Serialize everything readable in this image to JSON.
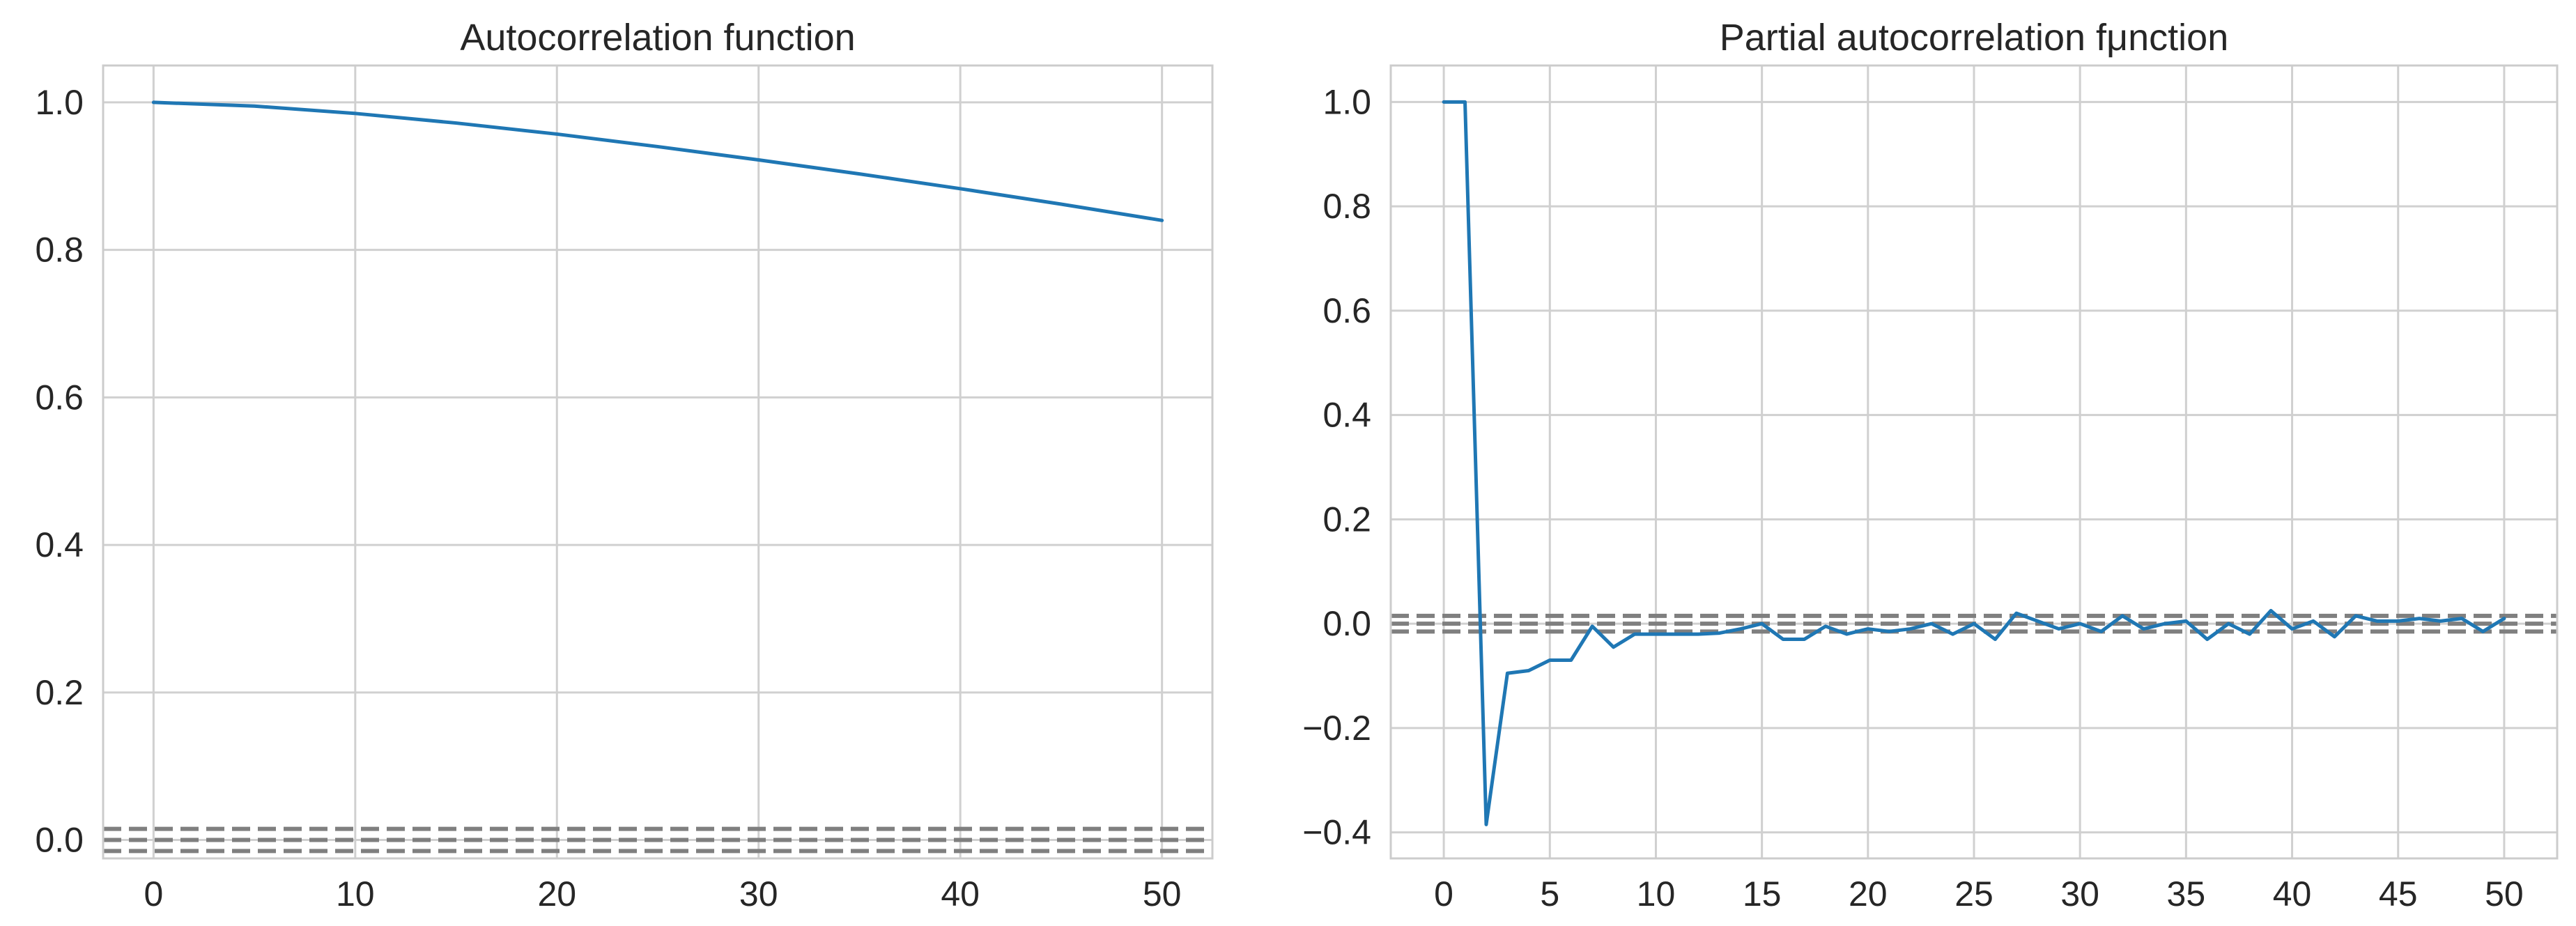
{
  "chart_data": [
    {
      "type": "line",
      "title": "Autocorrelation function",
      "xlabel": "",
      "ylabel": "",
      "xlim": [
        -2.5,
        52.5
      ],
      "ylim": [
        -0.025,
        1.05
      ],
      "grid": true,
      "x_ticks": [
        0,
        10,
        20,
        30,
        40,
        50
      ],
      "x_tick_labels": [
        "0",
        "10",
        "20",
        "30",
        "40",
        "50"
      ],
      "y_ticks": [
        0.0,
        0.2,
        0.4,
        0.6,
        0.8,
        1.0
      ],
      "y_tick_labels": [
        "0.0",
        "0.2",
        "0.4",
        "0.6",
        "0.8",
        "1.0"
      ],
      "confidence_lines": [
        -0.015,
        0.0,
        0.015
      ],
      "series": [
        {
          "color": "#1f77b4",
          "x": [
            0,
            5,
            10,
            15,
            20,
            25,
            30,
            35,
            40,
            45,
            50
          ],
          "values": [
            1.0,
            0.995,
            0.985,
            0.972,
            0.957,
            0.94,
            0.922,
            0.903,
            0.883,
            0.862,
            0.84
          ]
        }
      ]
    },
    {
      "type": "line",
      "title": "Partial autocorrelation fμnction",
      "xlabel": "",
      "ylabel": "",
      "xlim": [
        -2.5,
        52.5
      ],
      "ylim": [
        -0.45,
        1.07
      ],
      "grid": true,
      "x_ticks": [
        0,
        5,
        10,
        15,
        20,
        25,
        30,
        35,
        40,
        45,
        50
      ],
      "x_tick_labels": [
        "0",
        "5",
        "10",
        "15",
        "20",
        "25",
        "30",
        "35",
        "40",
        "45",
        "50"
      ],
      "y_ticks": [
        -0.4,
        -0.2,
        0.0,
        0.2,
        0.4,
        0.6,
        0.8,
        1.0
      ],
      "y_tick_labels": [
        "−0.4",
        "−0.2",
        "0.0",
        "0.2",
        "0.4",
        "0.6",
        "0.8",
        "1.0"
      ],
      "confidence_lines": [
        -0.015,
        0.0,
        0.015
      ],
      "series": [
        {
          "color": "#1f77b4",
          "x": [
            0,
            1,
            2,
            3,
            4,
            5,
            6,
            7,
            8,
            9,
            10,
            11,
            12,
            13,
            14,
            15,
            16,
            17,
            18,
            19,
            20,
            21,
            22,
            23,
            24,
            25,
            26,
            27,
            28,
            29,
            30,
            31,
            32,
            33,
            34,
            35,
            36,
            37,
            38,
            39,
            40,
            41,
            42,
            43,
            44,
            45,
            46,
            47,
            48,
            49,
            50
          ],
          "values": [
            1.0,
            1.0,
            -0.385,
            -0.095,
            -0.09,
            -0.07,
            -0.07,
            -0.005,
            -0.045,
            -0.02,
            -0.02,
            -0.02,
            -0.02,
            -0.018,
            -0.01,
            0.0,
            -0.03,
            -0.03,
            -0.005,
            -0.02,
            -0.01,
            -0.015,
            -0.01,
            0.0,
            -0.02,
            0.0,
            -0.03,
            0.02,
            0.005,
            -0.01,
            0.0,
            -0.015,
            0.015,
            -0.01,
            0.0,
            0.005,
            -0.03,
            0.0,
            -0.02,
            0.025,
            -0.01,
            0.005,
            -0.025,
            0.015,
            0.005,
            0.005,
            0.01,
            0.005,
            0.01,
            -0.015,
            0.01
          ]
        }
      ]
    }
  ]
}
